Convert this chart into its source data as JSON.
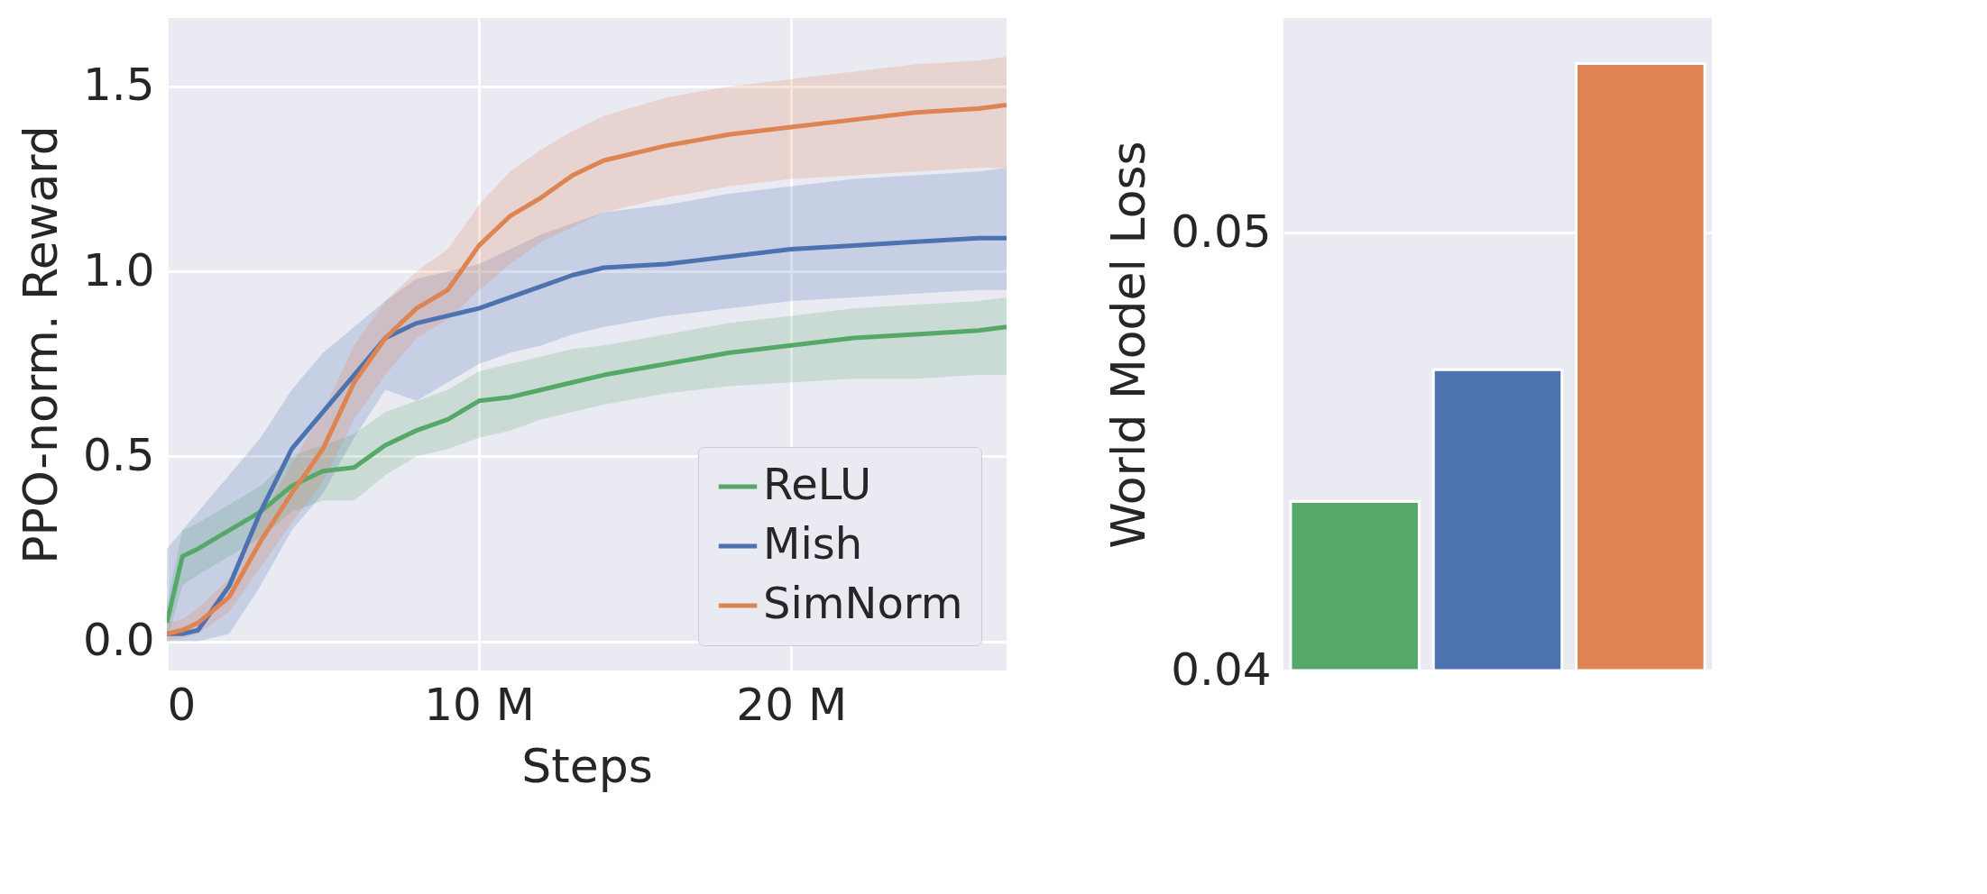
{
  "chart_data": [
    {
      "type": "line",
      "xlabel": "Steps",
      "ylabel": "PPO-norm. Reward",
      "xlim": [
        0,
        26.9
      ],
      "ylim": [
        -0.079,
        1.685
      ],
      "xticks": [
        0,
        {
          "value": 10,
          "label": "10 M"
        },
        {
          "value": 20,
          "label": "20 M"
        }
      ],
      "yticks": [
        {
          "value": 0,
          "label": "0.0"
        },
        0.5,
        {
          "value": 1,
          "label": "1.0"
        },
        1.5
      ],
      "grid": true,
      "legend": "bottom right",
      "line_style": "solid",
      "x": [
        0,
        0.5,
        1,
        2,
        3,
        4,
        5,
        6,
        7,
        8,
        9,
        10,
        11,
        12,
        13,
        14,
        16,
        18,
        20,
        22,
        24,
        26,
        26.9
      ],
      "series": [
        {
          "name": "ReLU",
          "color": "#55a868",
          "values": [
            0.05,
            0.23,
            0.25,
            0.3,
            0.35,
            0.42,
            0.46,
            0.47,
            0.53,
            0.57,
            0.6,
            0.65,
            0.66,
            0.68,
            0.7,
            0.72,
            0.75,
            0.78,
            0.8,
            0.82,
            0.83,
            0.84,
            0.85
          ],
          "lower": [
            0.0,
            0.15,
            0.18,
            0.23,
            0.28,
            0.35,
            0.38,
            0.38,
            0.45,
            0.5,
            0.52,
            0.55,
            0.57,
            0.6,
            0.62,
            0.64,
            0.67,
            0.69,
            0.7,
            0.71,
            0.71,
            0.72,
            0.72
          ],
          "upper": [
            0.1,
            0.3,
            0.32,
            0.37,
            0.42,
            0.5,
            0.53,
            0.56,
            0.62,
            0.65,
            0.68,
            0.73,
            0.75,
            0.77,
            0.79,
            0.8,
            0.83,
            0.86,
            0.88,
            0.9,
            0.91,
            0.92,
            0.93
          ]
        },
        {
          "name": "Mish",
          "color": "#4c72b0",
          "values": [
            0.02,
            0.02,
            0.03,
            0.15,
            0.35,
            0.52,
            0.62,
            0.72,
            0.82,
            0.86,
            0.88,
            0.9,
            0.93,
            0.96,
            0.99,
            1.01,
            1.02,
            1.04,
            1.06,
            1.07,
            1.08,
            1.09,
            1.09
          ],
          "lower": [
            0.0,
            0.0,
            0.0,
            0.02,
            0.15,
            0.3,
            0.4,
            0.55,
            0.68,
            0.65,
            0.7,
            0.75,
            0.78,
            0.8,
            0.83,
            0.85,
            0.88,
            0.9,
            0.92,
            0.93,
            0.94,
            0.95,
            0.95
          ],
          "upper": [
            0.25,
            0.3,
            0.35,
            0.45,
            0.55,
            0.68,
            0.78,
            0.85,
            0.92,
            0.98,
            1.0,
            1.02,
            1.06,
            1.1,
            1.13,
            1.16,
            1.18,
            1.21,
            1.23,
            1.25,
            1.26,
            1.27,
            1.28
          ]
        },
        {
          "name": "SimNorm",
          "color": "#dd8452",
          "values": [
            0.02,
            0.03,
            0.05,
            0.12,
            0.27,
            0.4,
            0.52,
            0.7,
            0.82,
            0.9,
            0.95,
            1.07,
            1.15,
            1.2,
            1.26,
            1.3,
            1.34,
            1.37,
            1.39,
            1.41,
            1.43,
            1.44,
            1.45
          ],
          "lower": [
            0.0,
            0.01,
            0.02,
            0.08,
            0.2,
            0.32,
            0.43,
            0.6,
            0.72,
            0.82,
            0.87,
            0.95,
            1.02,
            1.08,
            1.12,
            1.16,
            1.2,
            1.23,
            1.25,
            1.26,
            1.27,
            1.28,
            1.28
          ],
          "upper": [
            0.05,
            0.06,
            0.09,
            0.17,
            0.33,
            0.48,
            0.62,
            0.8,
            0.92,
            1.0,
            1.06,
            1.18,
            1.27,
            1.33,
            1.38,
            1.42,
            1.47,
            1.5,
            1.52,
            1.54,
            1.56,
            1.57,
            1.58
          ]
        }
      ]
    },
    {
      "type": "bar",
      "ylabel": "World Model Loss",
      "categories": [
        null,
        null,
        null
      ],
      "values": [
        0.04386,
        0.04687,
        0.05386
      ],
      "colors": [
        "#55a868",
        "#4c72b0",
        "#dd8452"
      ],
      "ylim": [
        0.04,
        0.0549
      ],
      "yticks": [
        0.04,
        0.05
      ],
      "grid": true,
      "tick_labels": "y"
    }
  ]
}
